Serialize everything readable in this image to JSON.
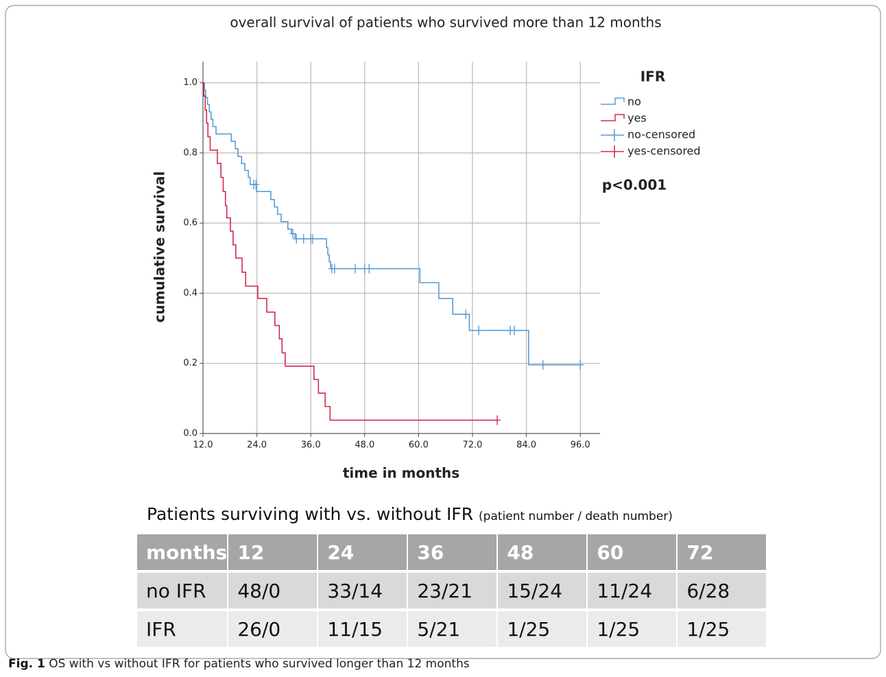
{
  "chart_data": {
    "type": "kaplan-meier",
    "title": "overall survival of patients who survived more than 12 months",
    "x_label": "time in months",
    "y_label": "cumulative survival",
    "legend_title": "IFR",
    "annotation": "p<0.001",
    "xlim": [
      12,
      100.4
    ],
    "ylim": [
      0,
      1.06
    ],
    "xticks": [
      {
        "value": 12,
        "label": "12.0"
      },
      {
        "value": 24,
        "label": "24.0"
      },
      {
        "value": 36,
        "label": "36.0"
      },
      {
        "value": 48,
        "label": "48.0"
      },
      {
        "value": 60,
        "label": "60.0"
      },
      {
        "value": 72,
        "label": "72.0"
      },
      {
        "value": 84,
        "label": "84.0"
      },
      {
        "value": 96,
        "label": "96.0"
      }
    ],
    "yticks": [
      {
        "value": 0,
        "label": "0.0"
      },
      0.2,
      0.4,
      0.6,
      0.8,
      {
        "value": 1,
        "label": "1.0"
      }
    ],
    "grid": true,
    "series": [
      {
        "name": "no",
        "kind": "step",
        "color": "#5b9bd5",
        "x": [
          12,
          12.3,
          12.6,
          13.0,
          13.4,
          13.8,
          14.2,
          14.9,
          18.3,
          19.2,
          19.8,
          20.6,
          21.3,
          22.1,
          22.5,
          23.0,
          23.9,
          27.1,
          27.9,
          28.6,
          29.4,
          30.9,
          31.7,
          32.5,
          39.5,
          39.8,
          40.1,
          40.4,
          60.3,
          64.5,
          67.6,
          71.3,
          84.5,
          96.0
        ],
        "values": [
          1.0,
          0.979,
          0.958,
          0.938,
          0.917,
          0.896,
          0.875,
          0.854,
          0.833,
          0.812,
          0.79,
          0.77,
          0.75,
          0.73,
          0.71,
          0.71,
          0.69,
          0.667,
          0.646,
          0.625,
          0.604,
          0.583,
          0.57,
          0.555,
          0.53,
          0.51,
          0.49,
          0.47,
          0.43,
          0.385,
          0.34,
          0.294,
          0.196,
          0.196
        ]
      },
      {
        "name": "yes",
        "kind": "step",
        "color": "#d6284b",
        "x": [
          12,
          12.2,
          12.5,
          12.8,
          13.1,
          13.6,
          15.2,
          16.0,
          16.5,
          17.0,
          17.3,
          18.1,
          18.7,
          19.3,
          20.7,
          21.5,
          24.2,
          26.2,
          28.0,
          29.0,
          29.6,
          30.3,
          36.7,
          37.7,
          39.2,
          40.3,
          77.5
        ],
        "values": [
          1.0,
          0.962,
          0.923,
          0.885,
          0.846,
          0.808,
          0.77,
          0.73,
          0.69,
          0.65,
          0.615,
          0.577,
          0.538,
          0.5,
          0.46,
          0.42,
          0.385,
          0.346,
          0.308,
          0.27,
          0.23,
          0.192,
          0.154,
          0.115,
          0.077,
          0.038,
          0.038
        ]
      },
      {
        "name": "no-censored",
        "kind": "censored",
        "color": "#5b9bd5",
        "x": [
          23.3,
          23.8,
          32.0,
          32.8,
          34.4,
          36.0,
          36.4,
          40.7,
          41.3,
          45.9,
          48.0,
          49.0,
          70.5,
          73.4,
          80.4,
          81.3,
          87.7,
          96.0
        ],
        "values": [
          0.71,
          0.71,
          0.57,
          0.555,
          0.555,
          0.555,
          0.555,
          0.47,
          0.47,
          0.47,
          0.47,
          0.47,
          0.34,
          0.294,
          0.294,
          0.294,
          0.196,
          0.196
        ]
      },
      {
        "name": "yes-censored",
        "kind": "censored",
        "color": "#d6284b",
        "x": [
          77.5
        ],
        "values": [
          0.038
        ]
      }
    ]
  },
  "table": {
    "title": "Patients surviving with vs. without IFR",
    "subtitle": "(patient number / death number)",
    "header": [
      "months",
      "12",
      "24",
      "36",
      "48",
      "60",
      "72"
    ],
    "rows": [
      [
        "no IFR",
        "48/0",
        "33/14",
        "23/21",
        "15/24",
        "11/24",
        "6/28"
      ],
      [
        "IFR",
        "26/0",
        "11/15",
        "5/21",
        "1/25",
        "1/25",
        "1/25"
      ]
    ]
  },
  "caption": {
    "label": "Fig. 1",
    "text": "OS with vs without IFR for patients who survived longer than 12 months"
  }
}
